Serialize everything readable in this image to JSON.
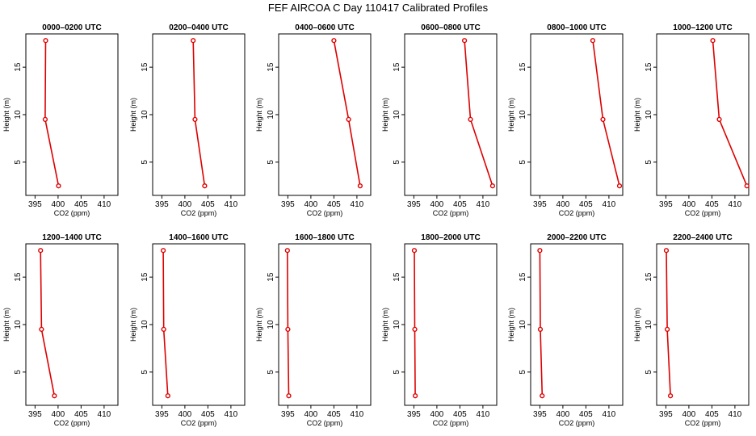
{
  "figure_title": "FEF AIRCOA C  Day 110417  Calibrated Profiles",
  "colors": {
    "profile": "#dd0000",
    "axes": "#000000"
  },
  "chart_data": [
    {
      "type": "line",
      "title": "0000–0200 UTC",
      "xlabel": "CO2 (ppm)",
      "ylabel": "Height (m)",
      "xlim": [
        393,
        413
      ],
      "ylim": [
        1.5,
        18.5
      ],
      "xticks": [
        395,
        400,
        405,
        410
      ],
      "yticks": [
        5,
        10,
        15
      ],
      "grid": false,
      "series": [
        {
          "x": [
            400.1,
            397.2,
            397.3
          ],
          "y": [
            2.5,
            9.5,
            17.8
          ]
        }
      ]
    },
    {
      "type": "line",
      "title": "0200–0400 UTC",
      "xlabel": "CO2 (ppm)",
      "ylabel": "Height (m)",
      "xlim": [
        393,
        413
      ],
      "ylim": [
        1.5,
        18.5
      ],
      "xticks": [
        395,
        400,
        405,
        410
      ],
      "yticks": [
        5,
        10,
        15
      ],
      "grid": false,
      "series": [
        {
          "x": [
            404.3,
            402.2,
            401.8
          ],
          "y": [
            2.5,
            9.5,
            17.8
          ]
        }
      ]
    },
    {
      "type": "line",
      "title": "0400–0600 UTC",
      "xlabel": "CO2 (ppm)",
      "ylabel": "Height (m)",
      "xlim": [
        393,
        413
      ],
      "ylim": [
        1.5,
        18.5
      ],
      "xticks": [
        395,
        400,
        405,
        410
      ],
      "yticks": [
        5,
        10,
        15
      ],
      "grid": false,
      "series": [
        {
          "x": [
            410.7,
            408.2,
            405.0
          ],
          "y": [
            2.5,
            9.5,
            17.8
          ]
        }
      ]
    },
    {
      "type": "line",
      "title": "0600–0800 UTC",
      "xlabel": "CO2 (ppm)",
      "ylabel": "Height (m)",
      "xlim": [
        393,
        413
      ],
      "ylim": [
        1.5,
        18.5
      ],
      "xticks": [
        395,
        400,
        405,
        410
      ],
      "yticks": [
        5,
        10,
        15
      ],
      "grid": false,
      "series": [
        {
          "x": [
            412.1,
            407.3,
            406.0
          ],
          "y": [
            2.5,
            9.5,
            17.8
          ]
        }
      ]
    },
    {
      "type": "line",
      "title": "0800–1000 UTC",
      "xlabel": "CO2 (ppm)",
      "ylabel": "Height (m)",
      "xlim": [
        393,
        413
      ],
      "ylim": [
        1.5,
        18.5
      ],
      "xticks": [
        395,
        400,
        405,
        410
      ],
      "yticks": [
        5,
        10,
        15
      ],
      "grid": false,
      "series": [
        {
          "x": [
            412.3,
            408.7,
            406.5
          ],
          "y": [
            2.5,
            9.5,
            17.8
          ]
        }
      ]
    },
    {
      "type": "line",
      "title": "1000–1200 UTC",
      "xlabel": "CO2 (ppm)",
      "ylabel": "Height (m)",
      "xlim": [
        393,
        413
      ],
      "ylim": [
        1.5,
        18.5
      ],
      "xticks": [
        395,
        400,
        405,
        410
      ],
      "yticks": [
        5,
        10,
        15
      ],
      "grid": false,
      "series": [
        {
          "x": [
            412.6,
            406.6,
            405.2
          ],
          "y": [
            2.5,
            9.5,
            17.8
          ]
        }
      ]
    },
    {
      "type": "line",
      "title": "1200–1400 UTC",
      "xlabel": "CO2 (ppm)",
      "ylabel": "Height (m)",
      "xlim": [
        393,
        413
      ],
      "ylim": [
        1.5,
        18.5
      ],
      "xticks": [
        395,
        400,
        405,
        410
      ],
      "yticks": [
        5,
        10,
        15
      ],
      "grid": false,
      "series": [
        {
          "x": [
            399.2,
            396.4,
            396.2
          ],
          "y": [
            2.5,
            9.5,
            17.8
          ]
        }
      ]
    },
    {
      "type": "line",
      "title": "1400–1600 UTC",
      "xlabel": "CO2 (ppm)",
      "ylabel": "Height (m)",
      "xlim": [
        393,
        413
      ],
      "ylim": [
        1.5,
        18.5
      ],
      "xticks": [
        395,
        400,
        405,
        410
      ],
      "yticks": [
        5,
        10,
        15
      ],
      "grid": false,
      "series": [
        {
          "x": [
            396.3,
            395.4,
            395.3
          ],
          "y": [
            2.5,
            9.5,
            17.8
          ]
        }
      ]
    },
    {
      "type": "line",
      "title": "1600–1800 UTC",
      "xlabel": "CO2 (ppm)",
      "ylabel": "Height (m)",
      "xlim": [
        393,
        413
      ],
      "ylim": [
        1.5,
        18.5
      ],
      "xticks": [
        395,
        400,
        405,
        410
      ],
      "yticks": [
        5,
        10,
        15
      ],
      "grid": false,
      "series": [
        {
          "x": [
            395.2,
            395.0,
            394.9
          ],
          "y": [
            2.5,
            9.5,
            17.8
          ]
        }
      ]
    },
    {
      "type": "line",
      "title": "1800–2000 UTC",
      "xlabel": "CO2 (ppm)",
      "ylabel": "Height (m)",
      "xlim": [
        393,
        413
      ],
      "ylim": [
        1.5,
        18.5
      ],
      "xticks": [
        395,
        400,
        405,
        410
      ],
      "yticks": [
        5,
        10,
        15
      ],
      "grid": false,
      "series": [
        {
          "x": [
            395.3,
            395.2,
            395.1
          ],
          "y": [
            2.5,
            9.5,
            17.8
          ]
        }
      ]
    },
    {
      "type": "line",
      "title": "2000–2200 UTC",
      "xlabel": "CO2 (ppm)",
      "ylabel": "Height (m)",
      "xlim": [
        393,
        413
      ],
      "ylim": [
        1.5,
        18.5
      ],
      "xticks": [
        395,
        400,
        405,
        410
      ],
      "yticks": [
        5,
        10,
        15
      ],
      "grid": false,
      "series": [
        {
          "x": [
            395.5,
            395.1,
            395.0
          ],
          "y": [
            2.5,
            9.5,
            17.8
          ]
        }
      ]
    },
    {
      "type": "line",
      "title": "2200–2400 UTC",
      "xlabel": "CO2 (ppm)",
      "ylabel": "Height (m)",
      "xlim": [
        393,
        413
      ],
      "ylim": [
        1.5,
        18.5
      ],
      "xticks": [
        395,
        400,
        405,
        410
      ],
      "yticks": [
        5,
        10,
        15
      ],
      "grid": false,
      "series": [
        {
          "x": [
            396.0,
            395.3,
            395.1
          ],
          "y": [
            2.5,
            9.5,
            17.8
          ]
        }
      ]
    }
  ]
}
